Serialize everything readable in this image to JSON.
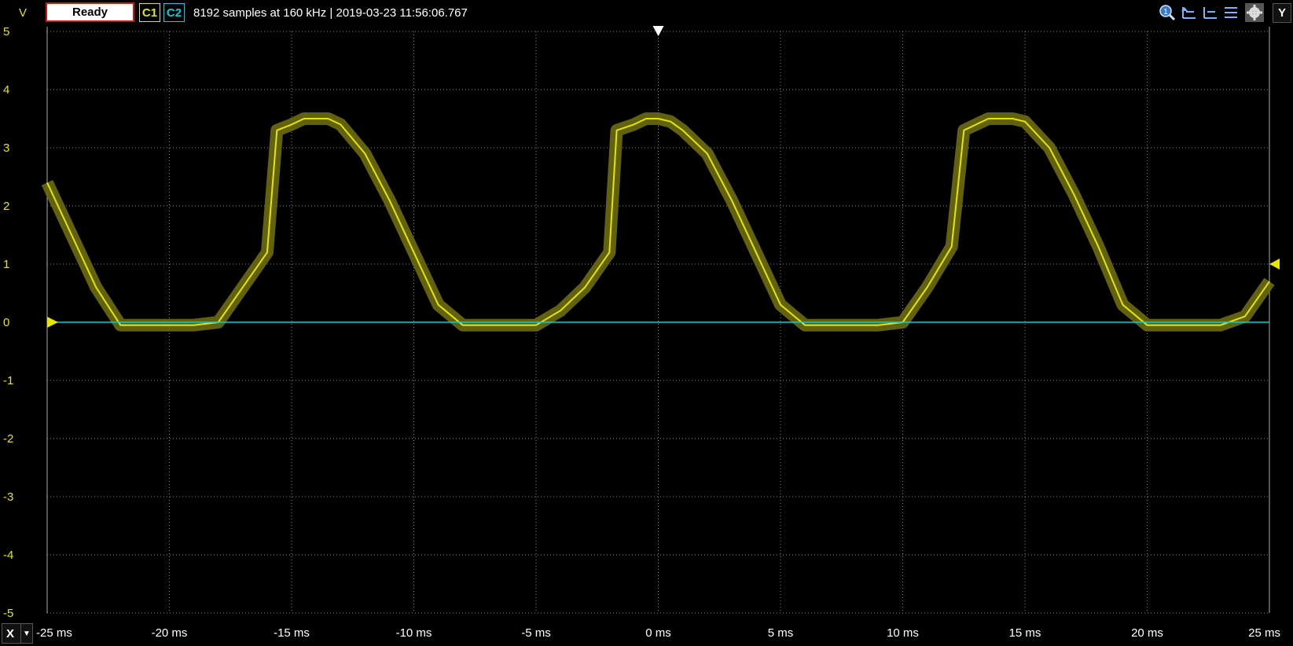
{
  "toolbar": {
    "unit_label": "V",
    "status": "Ready",
    "channel1": "C1",
    "channel2": "C2",
    "info": "8192 samples at 160 kHz | 2019-03-23 11:56:06.767",
    "icons": [
      "zoom-icon",
      "cursor-left-icon",
      "cursor-right-icon",
      "cursor-settings-icon",
      "gear-icon"
    ],
    "y_button": "Y"
  },
  "x_axis_button": {
    "label": "X",
    "dropdown_icon": "triangle-down-icon"
  },
  "colors": {
    "background": "#000000",
    "grid": "#8a8a8a",
    "channel1": "#e6e600",
    "channel1_band": "#6b6b10",
    "channel2": "#00d0e0",
    "status_border": "#e01010"
  },
  "chart_data": {
    "type": "line",
    "title": "",
    "xlabel": "",
    "ylabel": "V",
    "xlim": [
      -25,
      25
    ],
    "ylim": [
      -5,
      5
    ],
    "x_unit": "ms",
    "x_ticks": [
      "-25 ms",
      "-20 ms",
      "-15 ms",
      "-10 ms",
      "-5 ms",
      "0 ms",
      "5 ms",
      "10 ms",
      "15 ms",
      "20 ms",
      "25 ms"
    ],
    "y_ticks": [
      "5",
      "4",
      "3",
      "2",
      "1",
      "0",
      "-1",
      "-2",
      "-3",
      "-4",
      "-5"
    ],
    "grid": true,
    "trigger_time_ms": 0,
    "trigger_level_v": 1,
    "series": [
      {
        "name": "C1",
        "x": [
          -25,
          -24,
          -23,
          -22,
          -21,
          -20,
          -19,
          -18,
          -17,
          -16,
          -15.6,
          -15,
          -14.5,
          -14,
          -13.5,
          -13,
          -12,
          -11,
          -10,
          -9,
          -8,
          -7,
          -6,
          -5,
          -4,
          -3,
          -2,
          -1.7,
          -1,
          -0.5,
          0,
          0.5,
          1,
          2,
          3,
          4,
          5,
          6,
          7,
          8,
          9,
          10,
          11,
          12,
          12.5,
          13,
          13.5,
          14,
          14.5,
          15,
          16,
          17,
          18,
          19,
          20,
          21,
          22,
          23,
          24,
          25
        ],
        "y": [
          2.4,
          1.5,
          0.6,
          -0.05,
          -0.05,
          -0.05,
          -0.05,
          0,
          0.6,
          1.2,
          3.3,
          3.4,
          3.5,
          3.5,
          3.5,
          3.4,
          2.9,
          2.1,
          1.2,
          0.3,
          -0.05,
          -0.05,
          -0.05,
          -0.05,
          0.2,
          0.6,
          1.2,
          3.3,
          3.4,
          3.5,
          3.5,
          3.45,
          3.3,
          2.9,
          2.1,
          1.2,
          0.3,
          -0.05,
          -0.05,
          -0.05,
          -0.05,
          0,
          0.6,
          1.3,
          3.3,
          3.4,
          3.5,
          3.5,
          3.5,
          3.45,
          3.0,
          2.2,
          1.3,
          0.3,
          -0.05,
          -0.05,
          -0.05,
          -0.05,
          0.1,
          0.7
        ]
      },
      {
        "name": "C2",
        "x": [
          -25,
          25
        ],
        "y": [
          0,
          0
        ]
      }
    ]
  }
}
